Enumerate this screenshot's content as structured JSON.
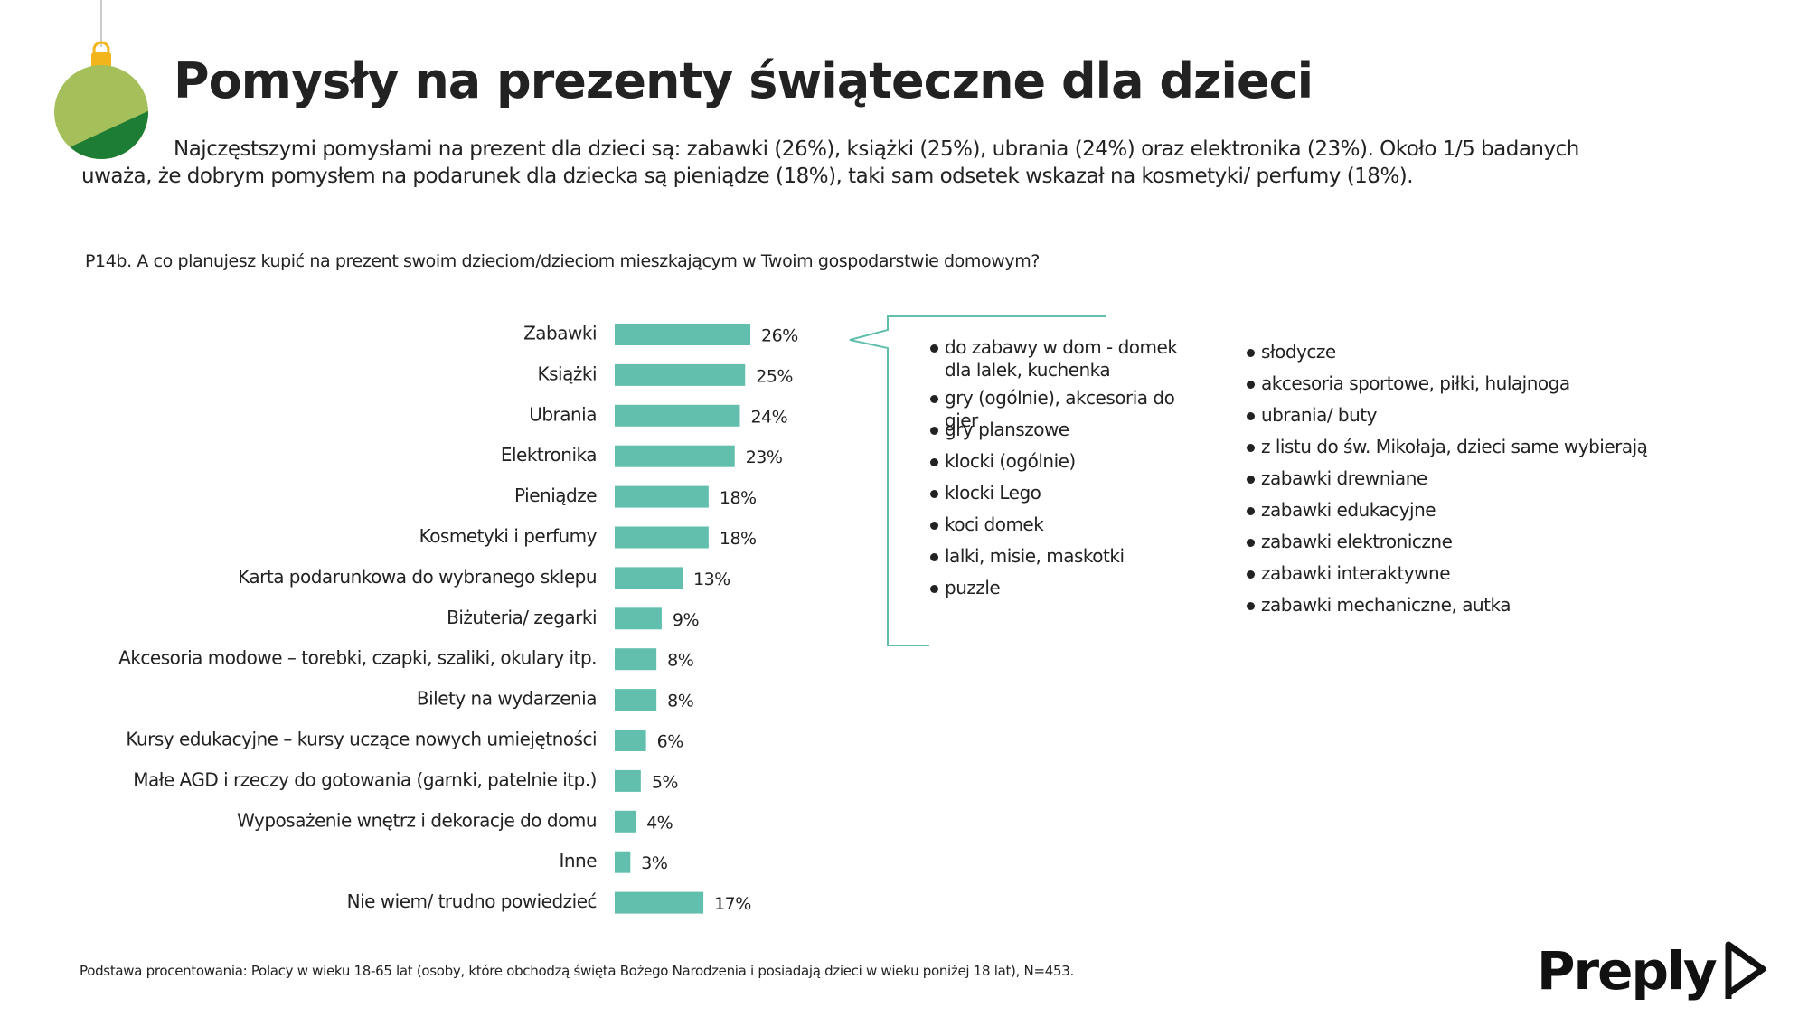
{
  "header": {
    "title": "Pomysły na prezenty świąteczne dla dzieci",
    "description": "Najczęstszymi pomysłami na prezent dla dzieci są: zabawki (26%), książki (25%), ubrania (24%) oraz elektronika (23%). Około 1/5 badanych uważa, że dobrym pomysłem na podarunek dla dziecka są pieniądze (18%), taki sam odsetek wskazał na kosmetyki/ perfumy (18%)."
  },
  "chart_data": {
    "type": "bar",
    "orientation": "horizontal",
    "title": "P14b. A co planujesz kupić na prezent swoim dzieciom/dzieciom mieszkającym w Twoim gospodarstwie domowym?",
    "categories": [
      "Zabawki",
      "Książki",
      "Ubrania",
      "Elektronika",
      "Pieniądze",
      "Kosmetyki i perfumy",
      "Karta podarunkowa do wybranego sklepu",
      "Biżuteria/ zegarki",
      "Akcesoria modowe – torebki, czapki, szaliki, okulary itp.",
      "Bilety na wydarzenia",
      "Kursy edukacyjne – kursy uczące nowych umiejętności",
      "Małe AGD i rzeczy do gotowania (garnki, patelnie itp.)",
      "Wyposażenie wnętrz  i  dekoracje do domu",
      "Inne",
      "Nie wiem/ trudno powiedzieć"
    ],
    "values": [
      26,
      25,
      24,
      23,
      18,
      18,
      13,
      9,
      8,
      8,
      6,
      5,
      4,
      3,
      17
    ],
    "value_labels": [
      "26%",
      "25%",
      "24%",
      "23%",
      "18%",
      "18%",
      "13%",
      "9%",
      "8%",
      "8%",
      "6%",
      "5%",
      "4%",
      "3%",
      "17%"
    ],
    "color": "#62bfad"
  },
  "examples": {
    "left": [
      "do zabawy w dom - domek dla lalek, kuchenka",
      "gry (ogólnie), akcesoria do gier",
      "gry planszowe",
      "klocki (ogólnie)",
      "klocki Lego",
      "koci domek",
      "lalki, misie, maskotki",
      "puzzle"
    ],
    "right": [
      "słodycze",
      "akcesoria sportowe, piłki, hulajnoga",
      "ubrania/ buty",
      "z listu do św. Mikołaja, dzieci same wybierają",
      "zabawki drewniane",
      "zabawki edukacyjne",
      "zabawki elektroniczne",
      "zabawki interaktywne",
      "zabawki mechaniczne, autka"
    ]
  },
  "footer": {
    "note": "Podstawa procentowania: Polacy w wieku 18-65 lat (osoby, które obchodzą święta Bożego Narodzenia i posiadają  dzieci w wieku poniżej 18 lat), N=453.",
    "logo": "Preply"
  }
}
